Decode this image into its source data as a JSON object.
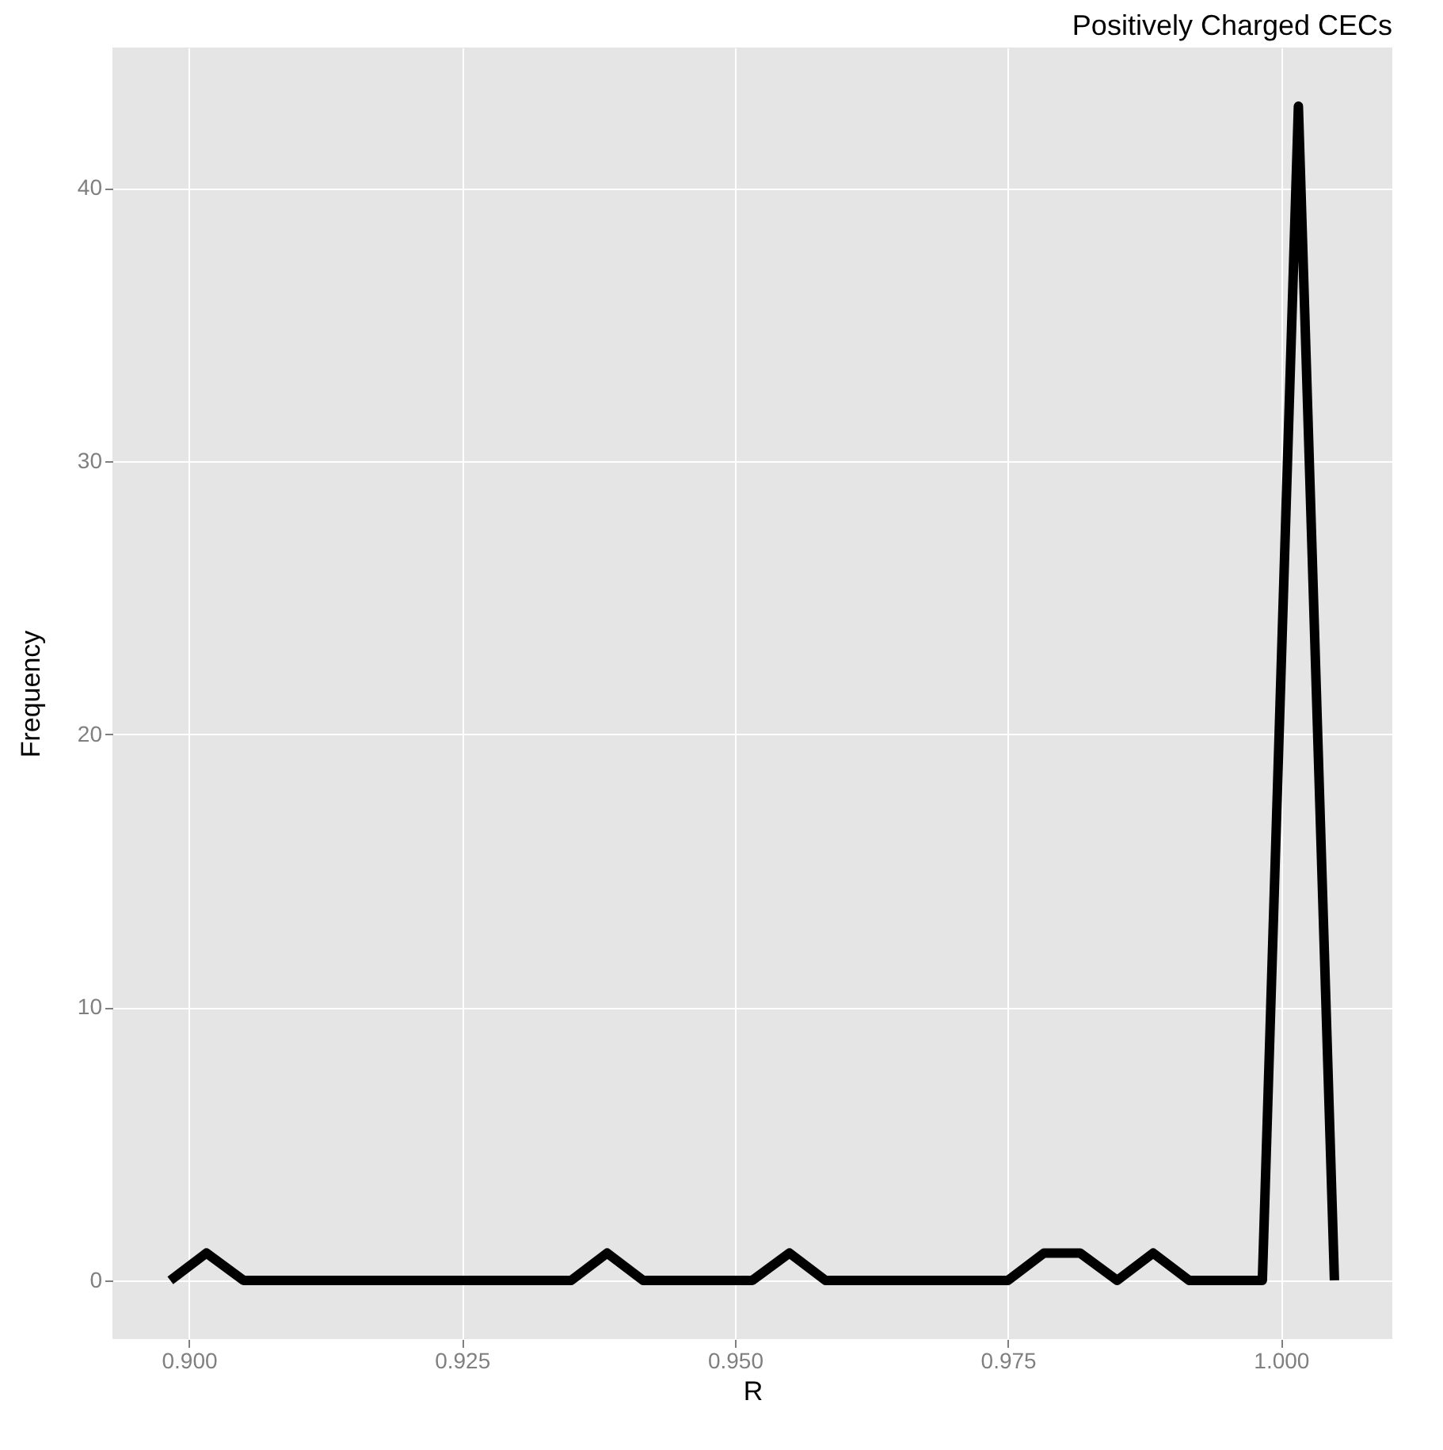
{
  "chart_data": {
    "type": "line",
    "title": "Positively Charged CECs",
    "xlabel": "R",
    "ylabel": "Frequency",
    "x": [
      0.8983,
      0.9016,
      0.905,
      0.9083,
      0.9116,
      0.915,
      0.9183,
      0.9216,
      0.925,
      0.9283,
      0.9316,
      0.935,
      0.9383,
      0.9416,
      0.945,
      0.9483,
      0.9516,
      0.955,
      0.9583,
      0.9616,
      0.965,
      0.9683,
      0.9716,
      0.975,
      0.9783,
      0.9816,
      0.985,
      0.9883,
      0.9916,
      0.995,
      0.9983,
      1.0016,
      1.0049
    ],
    "series": [
      {
        "color": "#000000",
        "values": [
          0,
          1,
          0,
          0,
          0,
          0,
          0,
          0,
          0,
          0,
          0,
          0,
          1,
          0,
          0,
          0,
          0,
          1,
          0,
          0,
          0,
          0,
          0,
          0,
          1,
          1,
          0,
          1,
          0,
          0,
          0,
          43,
          0
        ]
      }
    ],
    "xlim": [
      0.893,
      1.0102
    ],
    "ylim": [
      -2.15,
      45.15
    ],
    "xticks": [
      {
        "value": 0.9,
        "label": "0.900"
      },
      {
        "value": 0.925,
        "label": "0.925"
      },
      {
        "value": 0.95,
        "label": "0.950"
      },
      {
        "value": 0.975,
        "label": "0.975"
      },
      {
        "value": 1.0,
        "label": "1.000"
      }
    ],
    "yticks": [
      0,
      10,
      20,
      30,
      40
    ],
    "grid": true,
    "line_style": "solid",
    "marker": "none"
  }
}
